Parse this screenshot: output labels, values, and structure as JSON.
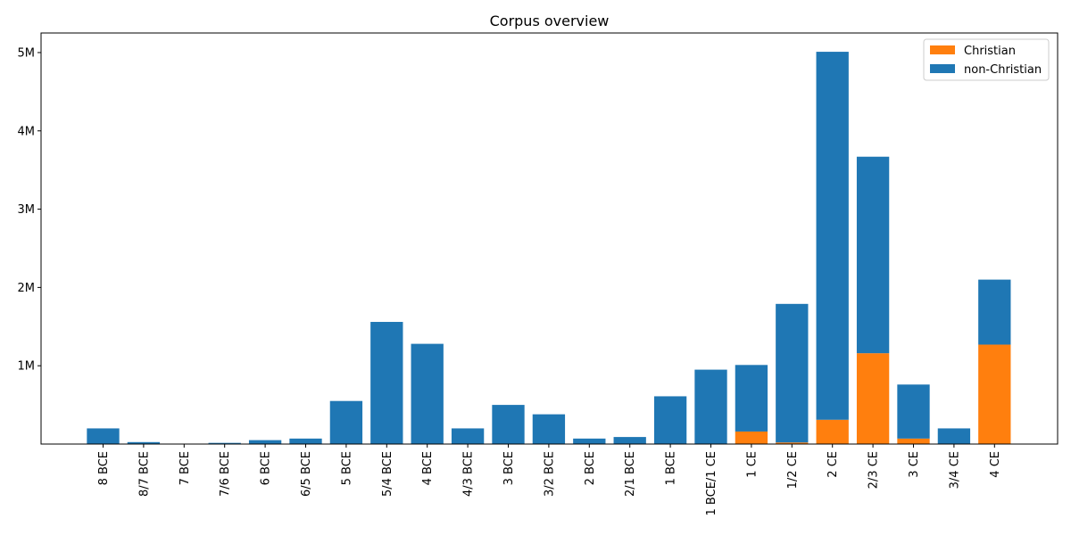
{
  "chart_data": {
    "type": "bar",
    "title": "Corpus overview",
    "xlabel": "",
    "ylabel": "",
    "categories": [
      "8 BCE",
      "8/7 BCE",
      "7 BCE",
      "7/6 BCE",
      "6 BCE",
      "6/5 BCE",
      "5 BCE",
      "5/4 BCE",
      "4 BCE",
      "4/3 BCE",
      "3 BCE",
      "3/2 BCE",
      "2 BCE",
      "2/1 BCE",
      "1 BCE",
      "1 BCE/1 CE",
      "1 CE",
      "1/2 CE",
      "2 CE",
      "2/3 CE",
      "3 CE",
      "3/4 CE",
      "4 CE"
    ],
    "series": [
      {
        "name": "Christian",
        "color": "#ff7f0e",
        "values": [
          0,
          0,
          0,
          0,
          0,
          0,
          0,
          0,
          0,
          0,
          0,
          0,
          0,
          0,
          0,
          0,
          160000,
          20000,
          310000,
          1160000,
          70000,
          0,
          1270000
        ]
      },
      {
        "name": "non-Christian",
        "color": "#1f77b4",
        "values": [
          200000,
          25000,
          3000,
          15000,
          50000,
          70000,
          550000,
          1560000,
          1280000,
          200000,
          500000,
          380000,
          70000,
          90000,
          610000,
          950000,
          850000,
          1770000,
          4700000,
          2510000,
          690000,
          200000,
          830000
        ]
      }
    ],
    "stacked": true,
    "ylim": [
      0,
      5250000
    ],
    "yticks": [
      1000000,
      2000000,
      3000000,
      4000000,
      5000000
    ],
    "ytick_labels": [
      "1M",
      "2M",
      "3M",
      "4M",
      "5M"
    ],
    "legend_position": "upper right",
    "grid": false
  }
}
